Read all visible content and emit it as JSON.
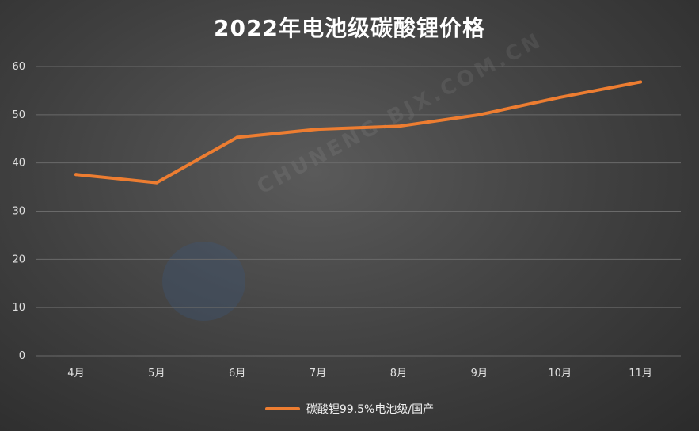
{
  "title": "2022年电池级碳酸锂价格",
  "watermark": "CHUNENG.BJX.COM.CN",
  "colors": {
    "series": "#ED7D31",
    "grid": "#6a6a6a",
    "text": "#e0e0e0"
  },
  "chart_data": {
    "type": "line",
    "title": "2022年电池级碳酸锂价格",
    "categories": [
      "4月",
      "5月",
      "6月",
      "7月",
      "8月",
      "9月",
      "10月",
      "11月"
    ],
    "series": [
      {
        "name": "碳酸锂99.5%电池级/国产",
        "values": [
          37.6,
          35.9,
          45.3,
          47.0,
          47.6,
          50.0,
          53.6,
          56.8
        ]
      }
    ],
    "ylim": [
      0,
      60
    ],
    "yticks": [
      0,
      10,
      20,
      30,
      40,
      50,
      60
    ],
    "grid": true,
    "legend_position": "bottom"
  }
}
